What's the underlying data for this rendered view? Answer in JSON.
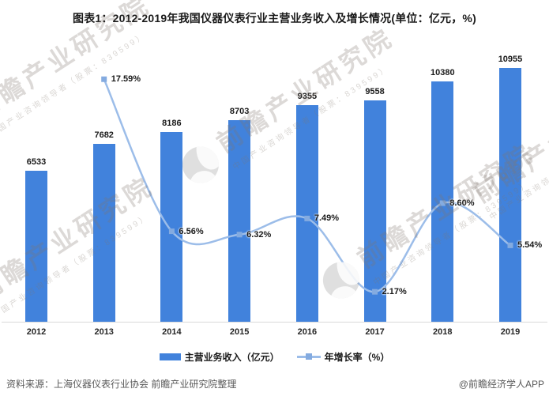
{
  "chart_data": {
    "type": "bar",
    "title": "图表1：2012-2019年我国仪器仪表行业主营业务收入及增长情况(单位：亿元，%)",
    "categories": [
      "2012",
      "2013",
      "2014",
      "2015",
      "2016",
      "2017",
      "2018",
      "2019"
    ],
    "series": [
      {
        "name": "主营业务收入（亿元）",
        "type": "bar",
        "color": "#4182DC",
        "values": [
          6533,
          7682,
          8186,
          8703,
          9355,
          9558,
          10380,
          10955
        ],
        "value_labels": [
          "6533",
          "7682",
          "8186",
          "8703",
          "9355",
          "9558",
          "10380",
          "10955"
        ]
      },
      {
        "name": "年增长率（%）",
        "type": "line",
        "color": "#9CBDE9",
        "marker_color": "#84ABE0",
        "values": [
          null,
          17.59,
          6.56,
          6.32,
          7.49,
          2.17,
          8.6,
          5.54
        ],
        "labels": [
          "",
          "17.59%",
          "6.56%",
          "6.32%",
          "7.49%",
          "2.17%",
          "8.60%",
          "5.54%"
        ]
      }
    ],
    "xlabel": "",
    "ylabel": "",
    "grid": false,
    "legend_position": "bottom",
    "ylim_left": [
      0,
      12000
    ],
    "ylim_right": [
      0,
      20
    ]
  },
  "colors": {
    "bar": "#4182DC",
    "line": "#9CBDE9",
    "marker": "#84ABE0",
    "axis_line": "#d9d9d9",
    "label_text": "#1a1a1a",
    "footer_text": "#595959"
  },
  "watermark": {
    "logo": "qianzhan-circle-logo",
    "main": "前瞻产业研究院",
    "sub": "中国产业咨询领导者（股票：839599）"
  },
  "footer": {
    "source": "资料来源：上海仪器仪表行业协会 前瞻产业研究院整理",
    "credit": "@前瞻经济学人APP"
  }
}
